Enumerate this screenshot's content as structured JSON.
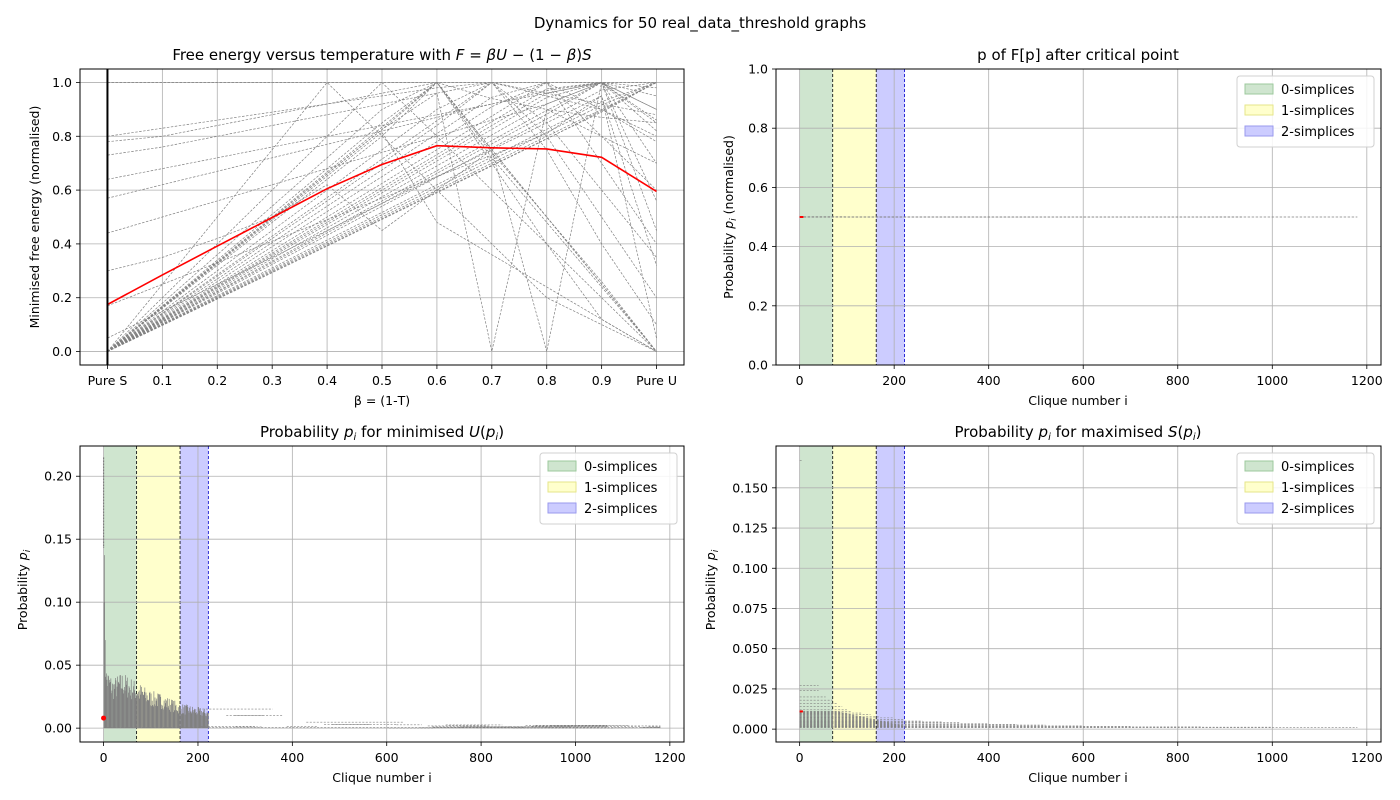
{
  "figure": {
    "title": "Dynamics for 50 real_data_threshold graphs",
    "legend_entries": [
      "0-simplices",
      "1-simplices",
      "2-simplices"
    ],
    "colors": {
      "grid": "#b0b0b0",
      "sample_lines": "#808080",
      "mean_line": "#ff0000",
      "band_0": "#cfe5cf",
      "band_1": "#ffffcc",
      "band_2": "#ccccff"
    }
  },
  "chart_data": [
    {
      "id": "free_energy",
      "type": "line",
      "title": "Free energy versus temperature with F = βU − (1 − β)S",
      "xlabel": "β = (1-T)",
      "ylabel": "Minimised free energy (normalised)",
      "x": [
        0,
        0.1,
        0.2,
        0.3,
        0.4,
        0.5,
        0.6,
        0.7,
        0.8,
        0.9,
        1.0
      ],
      "xtick_labels": [
        "Pure S",
        "0.1",
        "0.2",
        "0.3",
        "0.4",
        "0.5",
        "0.6",
        "0.7",
        "0.8",
        "0.9",
        "Pure U"
      ],
      "xlim": [
        -0.05,
        1.05
      ],
      "ylim": [
        -0.05,
        1.05
      ],
      "yticks": [
        0.0,
        0.2,
        0.4,
        0.6,
        0.8,
        1.0
      ],
      "ytick_labels": [
        "0.0",
        "0.2",
        "0.4",
        "0.6",
        "0.8",
        "1.0"
      ],
      "vline_x": 0,
      "mean_series": [
        0.175,
        0.285,
        0.392,
        0.498,
        0.605,
        0.695,
        0.765,
        0.757,
        0.753,
        0.722,
        0.595
      ],
      "sample_series": [
        [
          0,
          0.1,
          0.2,
          0.3,
          0.4,
          0.5,
          0.6,
          0.7,
          0.8,
          0.9,
          1.0
        ],
        [
          0,
          0.098,
          0.197,
          0.296,
          0.395,
          0.494,
          0.593,
          0.692,
          0.791,
          0.89,
          1.0
        ],
        [
          0,
          0.102,
          0.204,
          0.305,
          0.406,
          0.508,
          0.61,
          0.712,
          0.814,
          0.916,
          1.0
        ],
        [
          0,
          0.097,
          0.195,
          0.293,
          0.392,
          0.491,
          0.59,
          0.69,
          0.79,
          0.895,
          1.0
        ],
        [
          0,
          0.104,
          0.208,
          0.311,
          0.414,
          0.517,
          0.62,
          0.723,
          0.826,
          0.929,
          1.0
        ],
        [
          0,
          0.112,
          0.224,
          0.336,
          0.448,
          0.56,
          0.672,
          0.784,
          0.896,
          1.0,
          0.98
        ],
        [
          0,
          0.11,
          0.221,
          0.331,
          0.441,
          0.551,
          0.662,
          0.772,
          0.882,
          1.0,
          0.95
        ],
        [
          0,
          0.108,
          0.216,
          0.324,
          0.432,
          0.54,
          0.648,
          0.756,
          0.864,
          0.972,
          1.0
        ],
        [
          0,
          0.118,
          0.236,
          0.354,
          0.472,
          0.59,
          0.708,
          0.826,
          0.944,
          1.0,
          0.85
        ],
        [
          0,
          0.115,
          0.23,
          0.345,
          0.46,
          0.575,
          0.69,
          0.805,
          0.92,
          1.0,
          0.86
        ],
        [
          0,
          0.125,
          0.25,
          0.375,
          0.5,
          0.625,
          0.75,
          0.875,
          1.0,
          0.9,
          0.8
        ],
        [
          0,
          0.122,
          0.244,
          0.366,
          0.488,
          0.61,
          0.732,
          0.854,
          0.976,
          1.0,
          0.9
        ],
        [
          0,
          0.12,
          0.24,
          0.36,
          0.48,
          0.6,
          0.72,
          0.84,
          0.96,
          1.0,
          0.82
        ],
        [
          0,
          0.13,
          0.26,
          0.39,
          0.52,
          0.65,
          0.78,
          0.91,
          1.0,
          0.8,
          0.6
        ],
        [
          0,
          0.135,
          0.27,
          0.405,
          0.54,
          0.675,
          0.81,
          0.945,
          1.0,
          0.7,
          0.4
        ],
        [
          0,
          0.14,
          0.28,
          0.42,
          0.56,
          0.7,
          0.84,
          1.0,
          0.85,
          0.6,
          0.35
        ],
        [
          0,
          0.143,
          0.286,
          0.429,
          0.572,
          0.715,
          0.858,
          1.0,
          0.8,
          0.5,
          0.2
        ],
        [
          0,
          0.15,
          0.3,
          0.45,
          0.6,
          0.75,
          0.9,
          1.0,
          0.75,
          0.4,
          0.1
        ],
        [
          0,
          0.16,
          0.32,
          0.48,
          0.64,
          0.8,
          1.0,
          0.75,
          0.5,
          0.25,
          0.0
        ],
        [
          0,
          0.165,
          0.33,
          0.495,
          0.66,
          0.825,
          1.0,
          0.72,
          0.48,
          0.24,
          0.0
        ],
        [
          0,
          0.167,
          0.334,
          0.5,
          0.667,
          0.834,
          1.0,
          0.75,
          0.5,
          0.25,
          0.0
        ],
        [
          0,
          0.17,
          0.34,
          0.51,
          0.68,
          0.85,
          1.0,
          0.74,
          0.5,
          0.26,
          0.0
        ],
        [
          0,
          0.18,
          0.36,
          0.54,
          0.72,
          0.9,
          1.0,
          0.7,
          0.4,
          0.12,
          0.0
        ],
        [
          0,
          0.2,
          0.4,
          0.6,
          0.8,
          1.0,
          0.8,
          0.6,
          0.4,
          0.2,
          0.0
        ],
        [
          0,
          0.25,
          0.5,
          0.75,
          1.0,
          0.8,
          0.6,
          0.4,
          0.2,
          0.1,
          0.0
        ],
        [
          0,
          0.163,
          0.326,
          0.489,
          0.652,
          0.815,
          0.48,
          0.36,
          0.24,
          0.12,
          0.0
        ],
        [
          0,
          0.165,
          0.33,
          0.495,
          0.66,
          0.825,
          0.96,
          0.0,
          0.9,
          0.8,
          0.7
        ],
        [
          0.3,
          0.35,
          0.42,
          0.5,
          0.62,
          0.45,
          0.6,
          0.75,
          0.0,
          1.0,
          0.9
        ],
        [
          1.0,
          1.0,
          1.0,
          1.0,
          1.0,
          1.0,
          1.0,
          1.0,
          1.0,
          1.0,
          1.0
        ],
        [
          0.78,
          0.8,
          0.84,
          0.88,
          0.92,
          0.96,
          1.0,
          0.94,
          0.9,
          0.87,
          0.85
        ],
        [
          0.8,
          0.83,
          0.86,
          0.89,
          0.92,
          0.95,
          0.98,
          1.0,
          0.96,
          0.92,
          0.88
        ],
        [
          0.73,
          0.76,
          0.8,
          0.84,
          0.88,
          0.92,
          0.96,
          1.0,
          0.95,
          0.9,
          0.78
        ],
        [
          0.64,
          0.68,
          0.72,
          0.76,
          0.8,
          0.84,
          0.88,
          0.92,
          0.96,
          1.0,
          0.7
        ],
        [
          0.44,
          0.5,
          0.56,
          0.62,
          0.68,
          0.74,
          0.8,
          0.86,
          0.92,
          1.0,
          0.56
        ],
        [
          0.57,
          0.62,
          0.67,
          0.72,
          0.77,
          0.82,
          0.87,
          0.92,
          0.97,
          1.0,
          0.45
        ],
        [
          0.17,
          0.25,
          0.33,
          0.41,
          0.49,
          0.57,
          0.65,
          0.73,
          0.81,
          0.95,
          0.32
        ],
        [
          0.05,
          0.15,
          0.25,
          0.35,
          0.45,
          0.55,
          0.65,
          0.75,
          0.85,
          0.95,
          0.05
        ]
      ]
    },
    {
      "id": "critical",
      "type": "line",
      "title": "p of F[p] after critical point",
      "xlabel": "Clique number i",
      "ylabel": "Probability p_i (normalised)",
      "xlim": [
        -50,
        1230
      ],
      "ylim": [
        0,
        1.0
      ],
      "xticks": [
        0,
        200,
        400,
        600,
        800,
        1000,
        1200
      ],
      "xtick_labels": [
        "0",
        "200",
        "400",
        "600",
        "800",
        "1000",
        "1200"
      ],
      "yticks": [
        0.0,
        0.2,
        0.4,
        0.6,
        0.8,
        1.0
      ],
      "ytick_labels": [
        "0.0",
        "0.2",
        "0.4",
        "0.6",
        "0.8",
        "1.0"
      ],
      "bands": [
        [
          0,
          70
        ],
        [
          70,
          162
        ],
        [
          162,
          222
        ]
      ],
      "lines": [
        [
          0,
          1180,
          0.4995,
          0.5
        ],
        [
          0,
          935,
          0.5,
          0.5
        ],
        [
          0,
          500,
          0.501,
          0.4995
        ]
      ],
      "mean_point": [
        0,
        0.5
      ]
    },
    {
      "id": "min_u",
      "type": "line",
      "title": "Probability p_i for minimised U(p_i)",
      "xlabel": "Clique number i",
      "ylabel": "Probability p_i",
      "xlim": [
        -50,
        1230
      ],
      "ylim": [
        -0.011,
        0.224
      ],
      "xticks": [
        0,
        200,
        400,
        600,
        800,
        1000,
        1200
      ],
      "xtick_labels": [
        "0",
        "200",
        "400",
        "600",
        "800",
        "1000",
        "1200"
      ],
      "yticks": [
        0.0,
        0.05,
        0.1,
        0.15,
        0.2
      ],
      "ytick_labels": [
        "0.00",
        "0.05",
        "0.10",
        "0.15",
        "0.20"
      ],
      "bands": [
        [
          0,
          70
        ],
        [
          70,
          162
        ],
        [
          162,
          222
        ]
      ],
      "envelope": [
        [
          0,
          0.215
        ],
        [
          5,
          0.05
        ],
        [
          20,
          0.04
        ],
        [
          40,
          0.045
        ],
        [
          60,
          0.04
        ],
        [
          80,
          0.035
        ],
        [
          100,
          0.03
        ],
        [
          120,
          0.028
        ],
        [
          162,
          0.02
        ],
        [
          222,
          0.015
        ],
        [
          300,
          0.01
        ],
        [
          400,
          0.007
        ],
        [
          500,
          0.004
        ],
        [
          700,
          0.003
        ],
        [
          1000,
          0.002
        ],
        [
          1180,
          0.001
        ]
      ],
      "mean_point": [
        0,
        0.008
      ]
    },
    {
      "id": "max_s",
      "type": "line",
      "title": "Probability p_i for maximised S(p_i)",
      "xlabel": "Clique number i",
      "ylabel": "Probability p_i",
      "xlim": [
        -50,
        1230
      ],
      "ylim": [
        -0.008,
        0.176
      ],
      "xticks": [
        0,
        200,
        400,
        600,
        800,
        1000,
        1200
      ],
      "xtick_labels": [
        "0",
        "200",
        "400",
        "600",
        "800",
        "1000",
        "1200"
      ],
      "yticks": [
        0.0,
        0.025,
        0.05,
        0.075,
        0.1,
        0.125,
        0.15
      ],
      "ytick_labels": [
        "0.000",
        "0.025",
        "0.050",
        "0.075",
        "0.100",
        "0.125",
        "0.150"
      ],
      "bands": [
        [
          0,
          70
        ],
        [
          70,
          162
        ],
        [
          162,
          222
        ]
      ],
      "levels": [
        0.167,
        0.027,
        0.024,
        0.02,
        0.018,
        0.016,
        0.014,
        0.012,
        0.011,
        0.01,
        0.009,
        0.008,
        0.007,
        0.006,
        0.005,
        0.0045,
        0.004,
        0.0035,
        0.003,
        0.0025,
        0.002,
        0.0017,
        0.0014,
        0.0012,
        0.001
      ],
      "level_ends": [
        5,
        40,
        40,
        55,
        70,
        80,
        90,
        100,
        110,
        130,
        150,
        170,
        200,
        220,
        260,
        300,
        340,
        400,
        460,
        520,
        600,
        700,
        850,
        1000,
        1180
      ],
      "mean_point": [
        0,
        0.011
      ]
    }
  ]
}
